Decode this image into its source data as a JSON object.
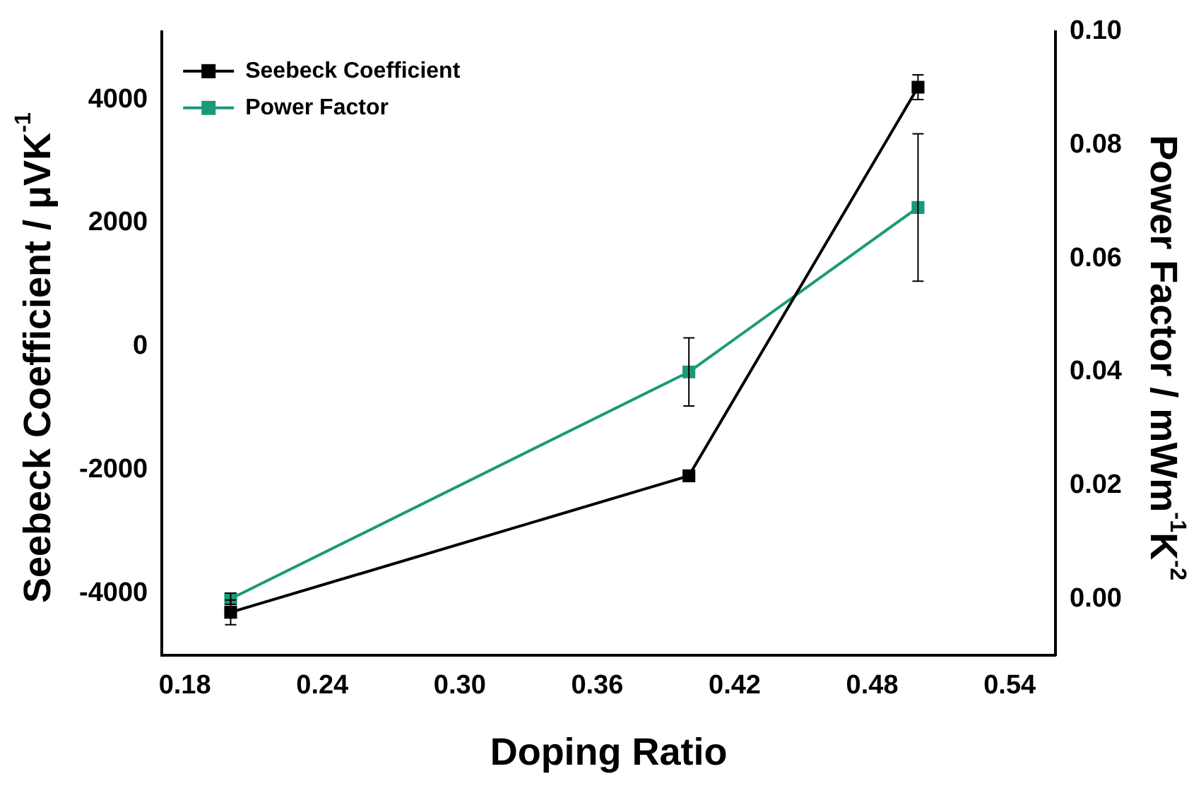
{
  "chart_data": {
    "type": "line",
    "xlabel": "Doping Ratio",
    "ylabel": "Seebeck Coefficient / μVK$^{-1}$",
    "y2label": "Power Factor / mWm$^{-1}$K$^{-2}$",
    "x": [
      0.2,
      0.4,
      0.5
    ],
    "series": [
      {
        "name": "Seebeck Coefficient",
        "color": "#000000",
        "values": [
          -4300,
          -2090,
          4200
        ],
        "errors": [
          200,
          null,
          200
        ]
      },
      {
        "name": "Power Factor",
        "color": "#1a9a78",
        "axis": "y2",
        "values": [
          0.0,
          0.04,
          0.069
        ],
        "errors": [
          0.001,
          0.006,
          0.013
        ]
      }
    ],
    "xlim": [
      0.17,
      0.56
    ],
    "xticks": [
      0.18,
      0.24,
      {
        "value": 0.3,
        "label": "0.30"
      },
      0.36,
      0.42,
      0.48,
      0.54
    ],
    "ylim": [
      -5000,
      5100
    ],
    "yticks": [
      -4000,
      -2000,
      0,
      2000,
      4000
    ],
    "y2lim": [
      -0.01,
      0.1
    ],
    "y2ticks": [
      {
        "value": 0,
        "label": "0.00"
      },
      0.02,
      0.04,
      0.06,
      0.08,
      {
        "value": 0.1,
        "label": "0.10"
      }
    ],
    "legend": "top left",
    "marker": "square",
    "line_style": "solid",
    "grid": false
  }
}
